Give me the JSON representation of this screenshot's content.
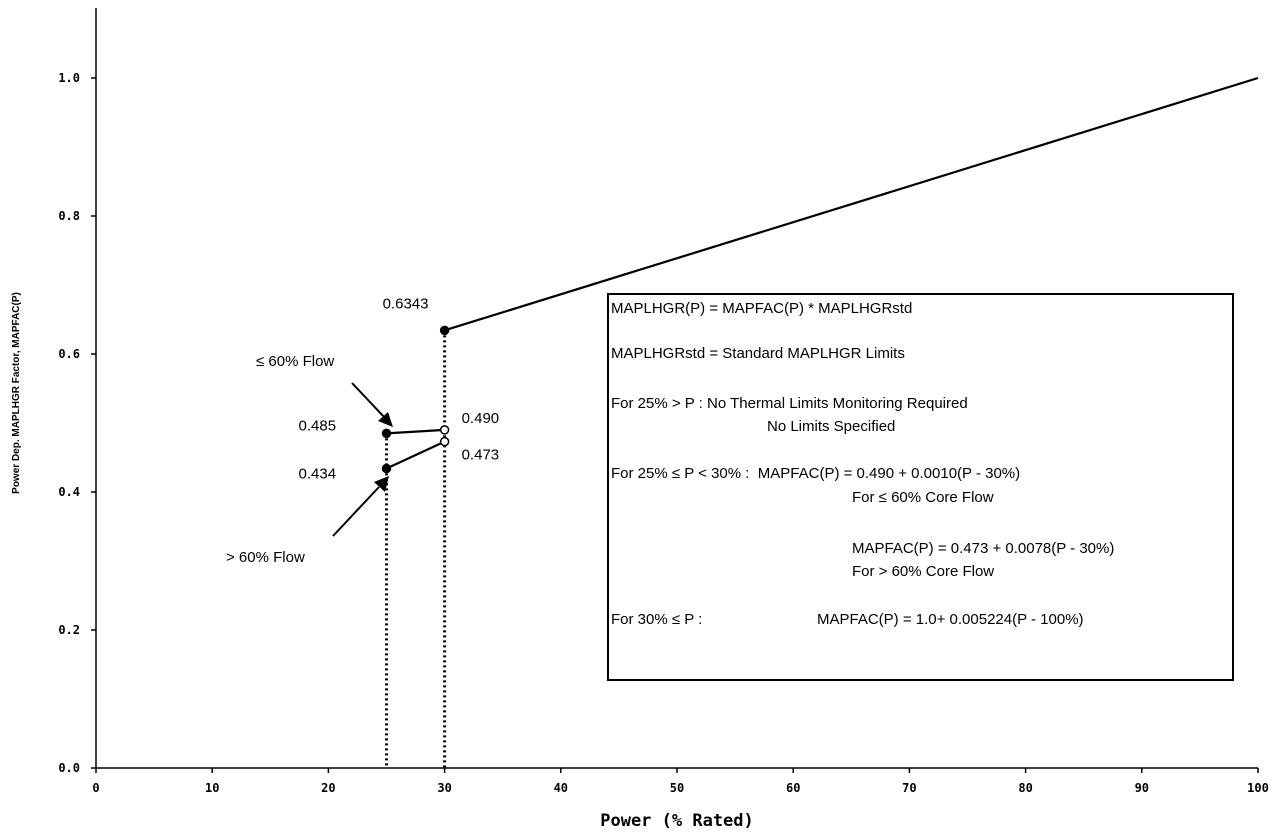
{
  "chart_data": {
    "type": "line",
    "xlabel": "Power (% Rated)",
    "ylabel": "Power Dep. MAPLHGR Factor, MAPFAC(P)",
    "xlim": [
      0,
      100
    ],
    "ylim": [
      0,
      1.1
    ],
    "x_ticks": [
      "0",
      "10",
      "20",
      "30",
      "40",
      "50",
      "60",
      "70",
      "80",
      "90",
      "100"
    ],
    "y_ticks": [
      "0.0",
      "0.2",
      "0.4",
      "0.6",
      "0.8",
      "1.0"
    ],
    "grid": false,
    "series": [
      {
        "name": "≤ 60% Flow",
        "x": [
          25,
          30
        ],
        "y": [
          0.485,
          0.49
        ]
      },
      {
        "name": "> 60% Flow",
        "x": [
          25,
          30
        ],
        "y": [
          0.434,
          0.473
        ]
      },
      {
        "name": "",
        "x": [
          30,
          100
        ],
        "y": [
          0.6343,
          1.0
        ]
      }
    ],
    "point_labels": [
      {
        "text": "0.6343",
        "x": 30,
        "y": 0.6343
      },
      {
        "text": "0.485",
        "x": 25,
        "y": 0.485
      },
      {
        "text": "0.490",
        "x": 30,
        "y": 0.49
      },
      {
        "text": "0.434",
        "x": 25,
        "y": 0.434
      },
      {
        "text": "0.473",
        "x": 30,
        "y": 0.473
      }
    ],
    "vertical_markers": [
      25,
      30
    ],
    "annotations": [
      "≤ 60% Flow",
      "> 60% Flow"
    ],
    "note_box": [
      "MAPLHGR(P) = MAPFAC(P) * MAPLHGRstd",
      "MAPLHGRstd = Standard MAPLHGR Limits",
      "For 25% > P : No Thermal Limits Monitoring Required",
      "No Limits Specified",
      "For 25% ≤ P < 30% :  MAPFAC(P) = 0.490 + 0.0010(P - 30%)",
      "For ≤ 60% Core Flow",
      "MAPFAC(P) = 0.473 + 0.0078(P - 30%)",
      "For > 60% Core Flow",
      "For 30% ≤ P :",
      "MAPFAC(P) = 1.0+ 0.005224(P - 100%)"
    ]
  }
}
